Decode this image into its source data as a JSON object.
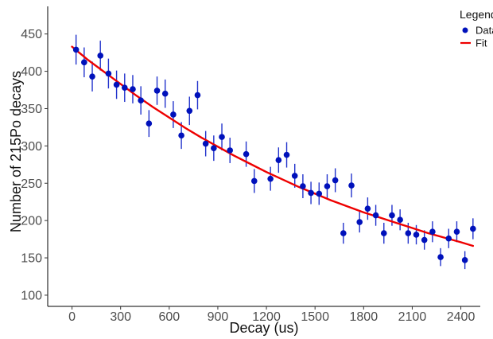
{
  "chart_data": {
    "type": "scatter",
    "title": "",
    "xlabel": "Decay (us)",
    "ylabel": "Number of 215Po decays",
    "xlim": [
      -150,
      2520
    ],
    "ylim": [
      85,
      487
    ],
    "xticks": [
      0,
      300,
      600,
      900,
      1200,
      1500,
      1800,
      2100,
      2400
    ],
    "yticks": [
      100,
      150,
      200,
      250,
      300,
      350,
      400,
      450
    ],
    "xtick_labels": [
      "0",
      "300",
      "600",
      "900",
      "1200",
      "1500",
      "1800",
      "2100",
      "2400"
    ],
    "ytick_labels": [
      "100",
      "150",
      "200",
      "250",
      "300",
      "350",
      "400",
      "450"
    ],
    "grid": false,
    "legend": {
      "title": "Legend",
      "placement": "top-right",
      "items": [
        {
          "label": "Data",
          "kind": "point",
          "color": "#0011bb"
        },
        {
          "label": "Fit",
          "kind": "line",
          "color": "#ee0000"
        }
      ]
    },
    "series": [
      {
        "name": "Data",
        "kind": "points",
        "color": "#0011bb",
        "errorbar_color": "#2233cc",
        "x": [
          25,
          75,
          125,
          175,
          225,
          275,
          325,
          375,
          425,
          475,
          525,
          575,
          625,
          675,
          725,
          775,
          825,
          875,
          925,
          975,
          1075,
          1125,
          1225,
          1275,
          1325,
          1375,
          1425,
          1475,
          1525,
          1575,
          1625,
          1675,
          1725,
          1775,
          1825,
          1875,
          1925,
          1975,
          2025,
          2075,
          2125,
          2175,
          2225,
          2275,
          2325,
          2375,
          2425,
          2475
        ],
        "y": [
          429,
          412,
          393,
          421,
          397,
          382,
          378,
          376,
          361,
          330,
          374,
          370,
          342,
          314,
          347,
          368,
          303,
          297,
          312,
          294,
          289,
          253,
          256,
          281,
          288,
          260,
          246,
          237,
          236,
          246,
          254,
          183,
          247,
          198,
          216,
          207,
          183,
          207,
          201,
          183,
          181,
          174,
          185,
          151,
          176,
          185,
          147,
          189
        ],
        "yerr": [
          20,
          20,
          20,
          20,
          20,
          19,
          19,
          19,
          19,
          18,
          19,
          19,
          18,
          18,
          19,
          19,
          17,
          17,
          18,
          17,
          17,
          16,
          16,
          17,
          17,
          16,
          16,
          15,
          15,
          16,
          16,
          14,
          16,
          14,
          15,
          14,
          14,
          14,
          14,
          14,
          13,
          13,
          14,
          12,
          13,
          14,
          12,
          14
        ]
      },
      {
        "name": "Fit",
        "kind": "line",
        "color": "#ee0000",
        "x": [
          0,
          100,
          200,
          300,
          400,
          500,
          600,
          700,
          800,
          900,
          1000,
          1100,
          1200,
          1300,
          1400,
          1500,
          1600,
          1700,
          1800,
          1900,
          2000,
          2100,
          2200,
          2300,
          2400,
          2475
        ],
        "y": [
          433,
          415,
          399,
          383,
          367,
          352,
          338,
          324,
          311,
          299,
          287,
          276,
          265,
          255,
          245,
          236,
          227,
          219,
          211,
          204,
          197,
          190,
          183,
          177,
          171,
          166
        ]
      }
    ]
  }
}
